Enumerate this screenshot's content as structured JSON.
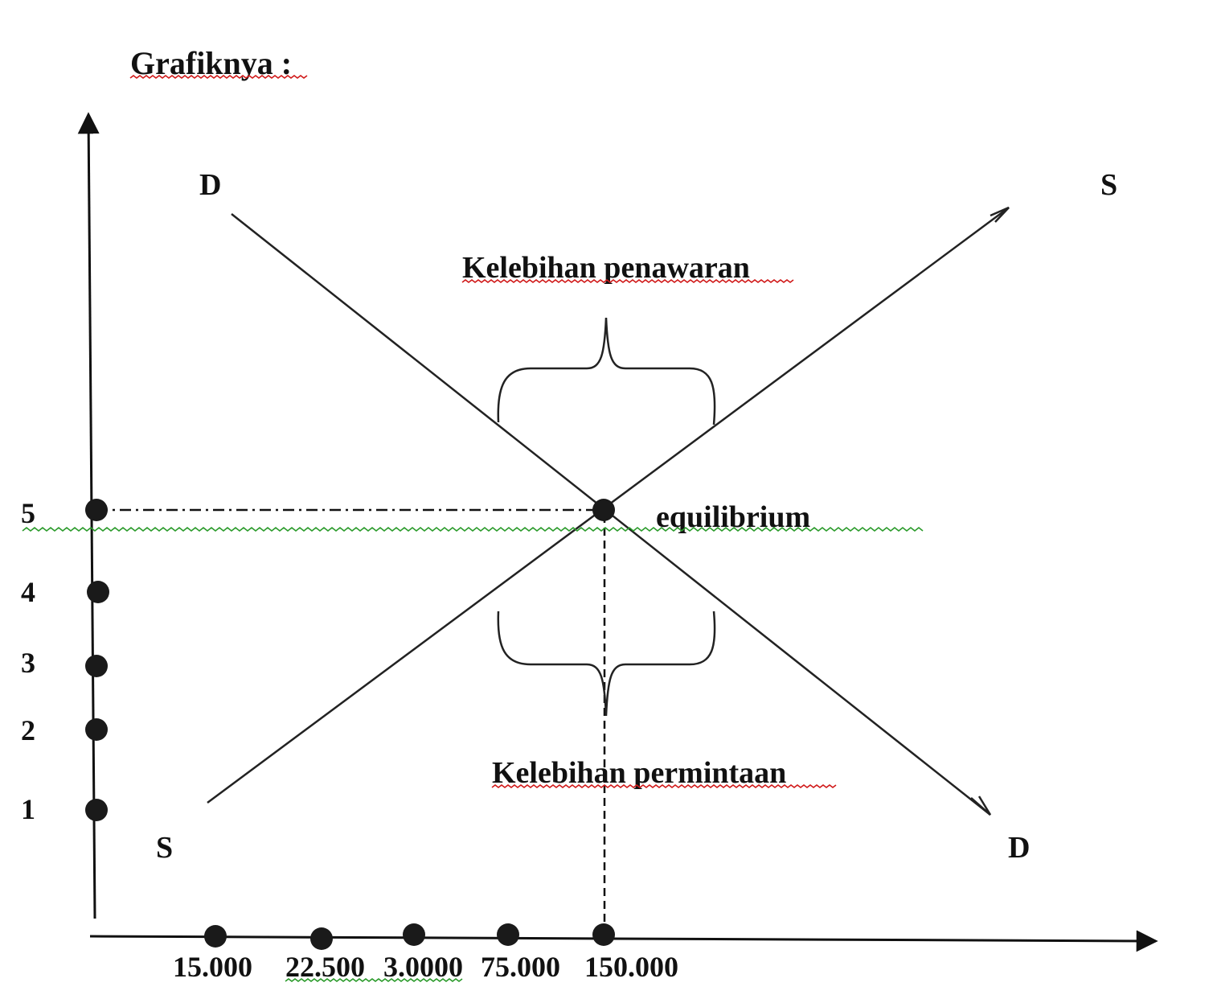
{
  "header": {
    "title": "Grafiknya :"
  },
  "curves": {
    "demand_top_label": "D",
    "demand_bottom_label": "D",
    "supply_top_label": "S",
    "supply_bottom_label": "S"
  },
  "annotations": {
    "surplus": "Kelebihan penawaran",
    "shortage": "Kelebihan permintaan",
    "equilibrium": "equilibrium"
  },
  "y_ticks": [
    "5",
    "4",
    "3",
    "2",
    "1"
  ],
  "x_ticks": [
    "15.000",
    "22.500",
    "3.0000",
    "75.000",
    "150.000"
  ],
  "colors": {
    "ink": "#111111",
    "spell_red": "#d01818",
    "spell_green": "#2a9a2a"
  }
}
